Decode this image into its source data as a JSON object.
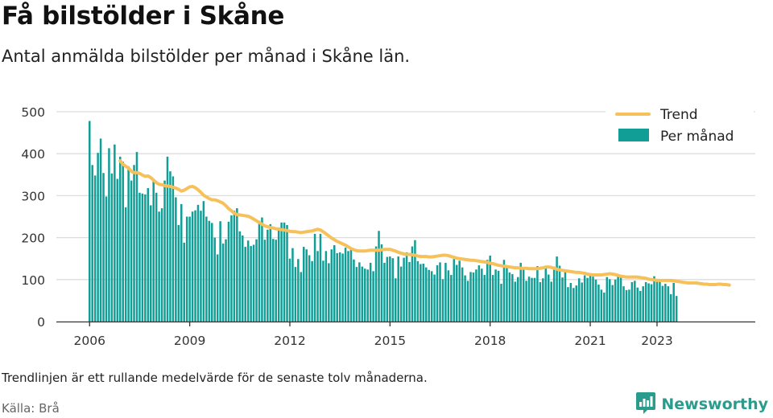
{
  "header": {
    "title": "Få bilstölder i Skåne",
    "subtitle": "Antal anmälda bilstölder per månad i Skåne län."
  },
  "footer": {
    "note": "Trendlinjen är ett rullande medelvärde för de senaste tolv månaderna.",
    "source": "Källa: Brå",
    "brand": "Newsworthy"
  },
  "colors": {
    "bars": "#109e96",
    "trend": "#f6c15a",
    "grid": "#dddddd",
    "brand": "#2a9c8e"
  },
  "icons": {
    "brand_logo": "newsworthy-chart-bubble-icon"
  },
  "chart_data": {
    "type": "bar",
    "x_start": "2006-01",
    "x_ticks": [
      "2006",
      "2009",
      "2012",
      "2015",
      "2018",
      "2021",
      "2023"
    ],
    "y_ticks": [
      "0",
      "100",
      "200",
      "300",
      "400",
      "500"
    ],
    "ylim": [
      0,
      500
    ],
    "grid": true,
    "legend_position": "top-right",
    "series": [
      {
        "name": "Per månad",
        "type": "bar",
        "values": [
          478,
          373,
          348,
          402,
          436,
          354,
          298,
          413,
          353,
          422,
          340,
          393,
          381,
          272,
          370,
          336,
          373,
          404,
          307,
          305,
          303,
          318,
          277,
          335,
          307,
          262,
          270,
          336,
          393,
          358,
          346,
          296,
          230,
          280,
          188,
          250,
          250,
          262,
          265,
          278,
          264,
          287,
          250,
          240,
          235,
          200,
          160,
          239,
          186,
          196,
          238,
          253,
          264,
          270,
          215,
          205,
          178,
          193,
          180,
          183,
          196,
          240,
          248,
          195,
          219,
          232,
          197,
          195,
          224,
          236,
          236,
          230,
          150,
          175,
          130,
          149,
          118,
          178,
          172,
          158,
          144,
          209,
          168,
          209,
          145,
          168,
          139,
          172,
          182,
          163,
          165,
          162,
          176,
          168,
          175,
          148,
          130,
          141,
          131,
          126,
          124,
          140,
          120,
          179,
          216,
          184,
          140,
          154,
          155,
          151,
          103,
          155,
          131,
          152,
          165,
          142,
          179,
          194,
          144,
          137,
          138,
          129,
          123,
          120,
          112,
          134,
          141,
          101,
          140,
          122,
          111,
          149,
          135,
          145,
          129,
          110,
          97,
          118,
          117,
          124,
          134,
          126,
          111,
          147,
          157,
          111,
          124,
          121,
          90,
          147,
          132,
          117,
          113,
          95,
          106,
          140,
          129,
          97,
          107,
          104,
          104,
          132,
          94,
          103,
          128,
          112,
          95,
          131,
          155,
          133,
          105,
          120,
          82,
          92,
          80,
          86,
          103,
          93,
          110,
          104,
          115,
          107,
          100,
          88,
          76,
          69,
          106,
          101,
          87,
          100,
          109,
          105,
          84,
          75,
          76,
          94,
          97,
          81,
          73,
          84,
          94,
          91,
          89,
          108,
          96,
          101,
          85,
          90,
          84,
          65,
          92,
          61
        ]
      },
      {
        "name": "Trend",
        "type": "line",
        "start_month_index": 11,
        "values": [
          383,
          375,
          370,
          366,
          358,
          355,
          355,
          353,
          349,
          346,
          347,
          343,
          337,
          331,
          327,
          326,
          324,
          323,
          322,
          320,
          318,
          315,
          311,
          313,
          317,
          321,
          322,
          319,
          314,
          308,
          301,
          297,
          293,
          290,
          290,
          288,
          285,
          282,
          276,
          269,
          264,
          258,
          255,
          254,
          253,
          252,
          251,
          248,
          244,
          240,
          236,
          232,
          228,
          226,
          224,
          223,
          221,
          220,
          219,
          218,
          217,
          215,
          214,
          214,
          213,
          212,
          213,
          214,
          215,
          216,
          218,
          220,
          218,
          214,
          209,
          204,
          199,
          195,
          191,
          188,
          185,
          182,
          178,
          174,
          171,
          169,
          168,
          168,
          168,
          169,
          170,
          170,
          170,
          170,
          171,
          172,
          172,
          172,
          170,
          168,
          165,
          163,
          161,
          160,
          160,
          159,
          158,
          156,
          155,
          155,
          155,
          154,
          154,
          155,
          156,
          157,
          158,
          158,
          157,
          155,
          153,
          151,
          150,
          149,
          148,
          147,
          146,
          146,
          145,
          144,
          143,
          142,
          141,
          139,
          138,
          136,
          134,
          133,
          132,
          131,
          130,
          129,
          128,
          128,
          127,
          127,
          127,
          126,
          126,
          126,
          126,
          127,
          128,
          130,
          130,
          129,
          127,
          125,
          123,
          122,
          121,
          120,
          119,
          118,
          117,
          117,
          116,
          115,
          113,
          112,
          111,
          111,
          111,
          111,
          112,
          113,
          114,
          113,
          112,
          110,
          108,
          107,
          106,
          106,
          106,
          106,
          106,
          105,
          104,
          103,
          101,
          100,
          99,
          98,
          98,
          98,
          98,
          98,
          98,
          97,
          96,
          95,
          94,
          93,
          92,
          92,
          92,
          92,
          91,
          90,
          89,
          89,
          88,
          88,
          88,
          89,
          89,
          88,
          88,
          87
        ]
      }
    ]
  }
}
